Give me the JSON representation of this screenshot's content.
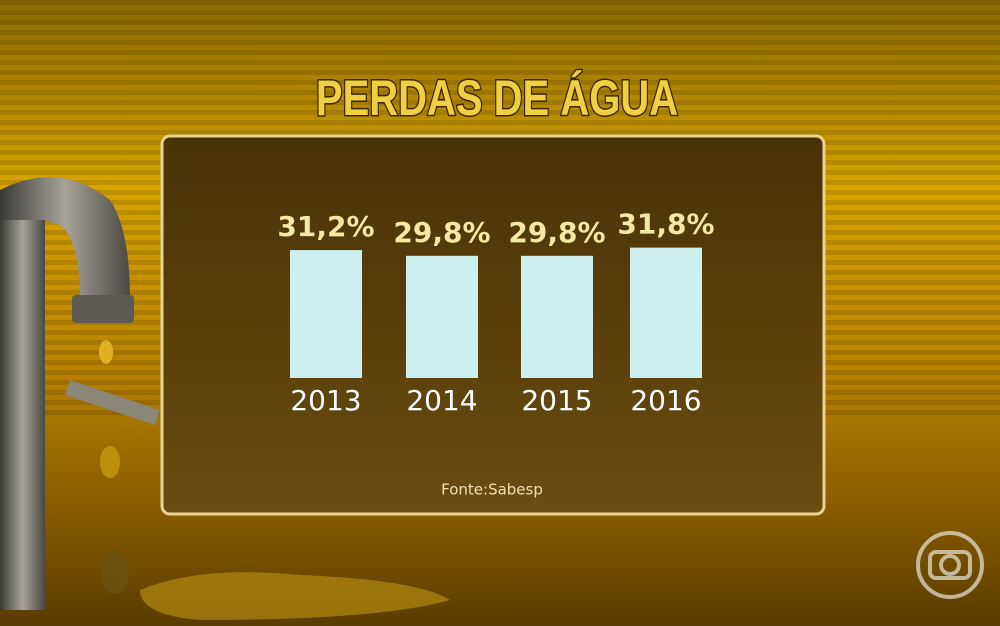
{
  "chart_data": {
    "type": "bar",
    "title": "PERDAS DE ÁGUA",
    "categories": [
      "2013",
      "2014",
      "2015",
      "2016"
    ],
    "values": [
      31.2,
      29.8,
      29.8,
      31.8
    ],
    "value_labels": [
      "31,2%",
      "29,8%",
      "29,8%",
      "31,8%"
    ],
    "color": "#cdeff0",
    "source": "Fonte:Sabesp"
  }
}
